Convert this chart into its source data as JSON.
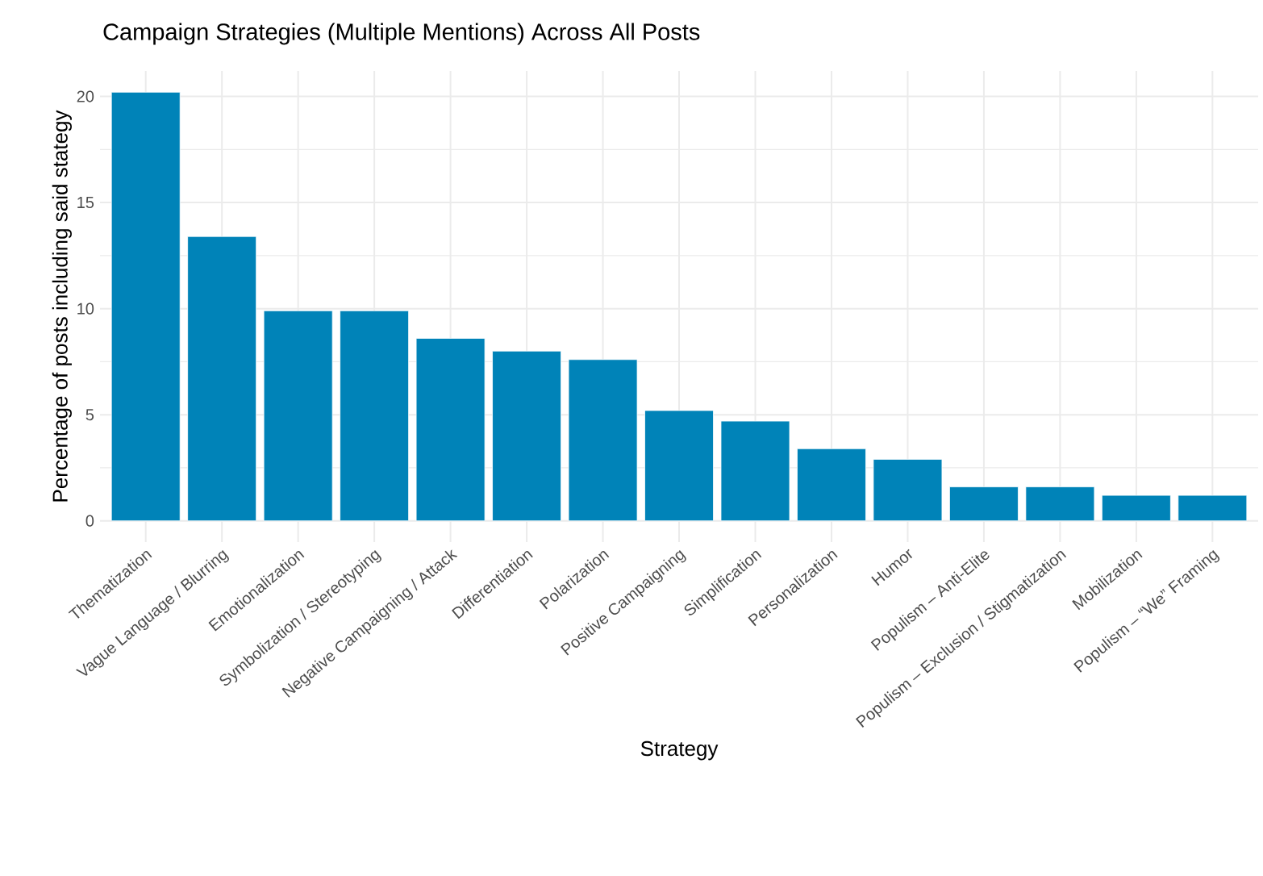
{
  "chart_data": {
    "type": "bar",
    "title": "Campaign Strategies (Multiple Mentions) Across All Posts",
    "xlabel": "Strategy",
    "ylabel": "Percentage of posts including said stategy",
    "categories": [
      "Thematization",
      "Vague Language / Blurring",
      "Emotionalization",
      "Symbolization / Stereotyping",
      "Negative Campaigning / Attack",
      "Differentiation",
      "Polarization",
      "Positive Campaigning",
      "Simplification",
      "Personalization",
      "Humor",
      "Populism – Anti-Elite",
      "Populism – Exclusion / Stigmatization",
      "Mobilization",
      "Populism – “We” Framing"
    ],
    "values": [
      20.2,
      13.4,
      9.9,
      9.9,
      8.6,
      8.0,
      7.6,
      5.2,
      4.7,
      3.4,
      2.9,
      1.6,
      1.6,
      1.2,
      1.2
    ],
    "color": "#0083b8",
    "ylim": [
      -1,
      21.2
    ],
    "yticks": [
      0,
      5,
      10,
      15,
      20
    ],
    "grid": true
  }
}
